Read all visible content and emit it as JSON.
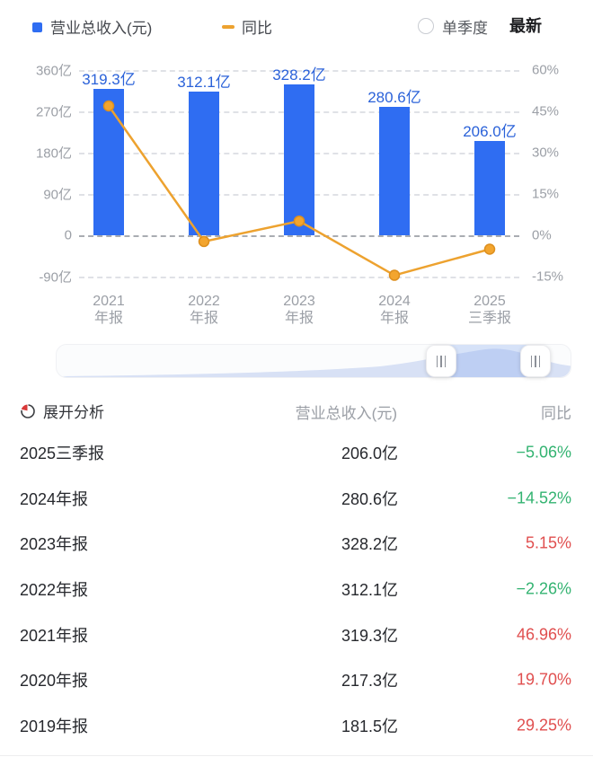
{
  "legend": {
    "revenue_label": "营业总收入(元)",
    "yoy_label": "同比"
  },
  "controls": {
    "quarter_toggle_label": "单季度",
    "latest_label": "最新"
  },
  "colors": {
    "bar": "#2f6df2",
    "bar_label": "#2b62d9",
    "line": "#eda22f",
    "point_fill": "#f3a52e",
    "point_stroke": "#dd8f1e",
    "up_red": "#e04f4f",
    "down_green": "#33b371"
  },
  "chart_data": {
    "type": "bar+line",
    "categories": [
      [
        "2021",
        "年报"
      ],
      [
        "2022",
        "年报"
      ],
      [
        "2023",
        "年报"
      ],
      [
        "2024",
        "年报"
      ],
      [
        "2025",
        "三季报"
      ]
    ],
    "bar_series": {
      "name": "营业总收入(元)",
      "unit": "亿",
      "values": [
        319.3,
        312.1,
        328.2,
        280.6,
        206.0
      ],
      "labels": [
        "319.3亿",
        "312.1亿",
        "328.2亿",
        "280.6亿",
        "206.0亿"
      ]
    },
    "line_series": {
      "name": "同比",
      "unit": "%",
      "values": [
        46.96,
        -2.26,
        5.15,
        -14.52,
        -5.06
      ]
    },
    "y_axis_left": {
      "ticks": [
        "360亿",
        "270亿",
        "180亿",
        "90亿",
        "0",
        "-90亿"
      ],
      "max": 360,
      "min": -90,
      "step": 90
    },
    "y_axis_right": {
      "ticks": [
        "60%",
        "45%",
        "30%",
        "15%",
        "0%",
        "-15%"
      ],
      "max": 60,
      "min": -15,
      "step": 15
    },
    "grid": "dashed",
    "legend_position": "top"
  },
  "table": {
    "header": {
      "expand_label": "展开分析",
      "col_value": "营业总收入(元)",
      "col_yoy": "同比"
    },
    "rows": [
      {
        "period": "2025三季报",
        "value": "206.0亿",
        "yoy": "−5.06%",
        "direction": "down"
      },
      {
        "period": "2024年报",
        "value": "280.6亿",
        "yoy": "−14.52%",
        "direction": "down"
      },
      {
        "period": "2023年报",
        "value": "328.2亿",
        "yoy": "5.15%",
        "direction": "up"
      },
      {
        "period": "2022年报",
        "value": "312.1亿",
        "yoy": "−2.26%",
        "direction": "down"
      },
      {
        "period": "2021年报",
        "value": "319.3亿",
        "yoy": "46.96%",
        "direction": "up"
      },
      {
        "period": "2020年报",
        "value": "217.3亿",
        "yoy": "19.70%",
        "direction": "up"
      },
      {
        "period": "2019年报",
        "value": "181.5亿",
        "yoy": "29.25%",
        "direction": "up"
      }
    ]
  }
}
